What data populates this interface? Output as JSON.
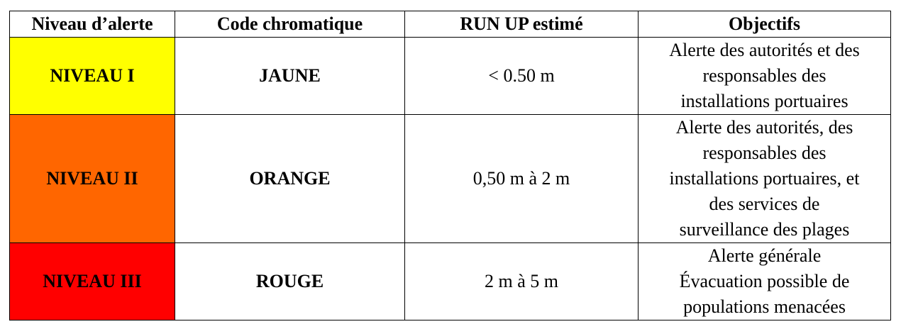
{
  "headers": [
    "Niveau d’alerte",
    "Code chromatique",
    "RUN UP estimé",
    "Objectifs"
  ],
  "rows": [
    {
      "level": "NIVEAU I",
      "color_code": "JAUNE",
      "run_up": "< 0.50 m",
      "color": "#FFFF00",
      "objectives": [
        "Alerte des autorités et des",
        "responsables des",
        "installations portuaires"
      ]
    },
    {
      "level": "NIVEAU II",
      "color_code": "ORANGE",
      "run_up": "0,50 m à 2 m",
      "color": "#FF6600",
      "objectives": [
        "Alerte des autorités, des",
        "responsables des",
        "installations portuaires, et",
        "des services de",
        "surveillance des plages"
      ]
    },
    {
      "level": "NIVEAU III",
      "color_code": "ROUGE",
      "run_up": "2 m à  5 m",
      "color": "#FF0000",
      "objectives": [
        "Alerte générale",
        "Évacuation possible de",
        "populations menacées"
      ]
    }
  ]
}
